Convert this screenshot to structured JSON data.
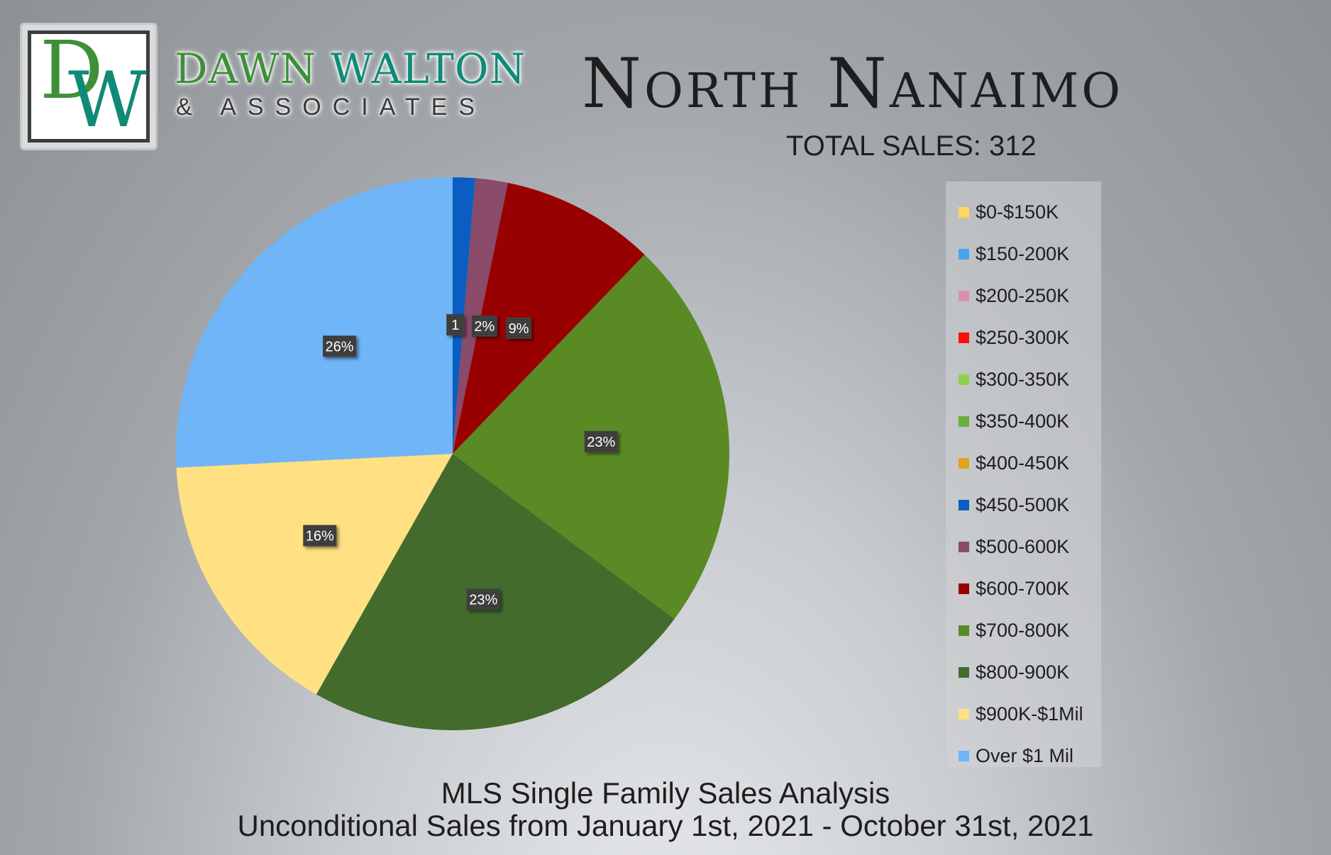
{
  "brand": {
    "logo_letters": "DW",
    "name_first": "DAWN",
    "name_last": "WALTON",
    "tagline": "& ASSOCIATES"
  },
  "header": {
    "title": "North Nanaimo",
    "total_sales": "TOTAL SALES: 312"
  },
  "footer": {
    "line1": "MLS Single Family Sales Analysis",
    "line2": "Unconditional Sales from January 1st, 2021 - October 31st, 2021"
  },
  "chart_data": {
    "type": "pie",
    "title": "North Nanaimo",
    "subtitle": "TOTAL SALES: 312",
    "legend_position": "right",
    "legend": [
      {
        "label": "$0-$150K",
        "color": "#ffd75e"
      },
      {
        "label": "$150-200K",
        "color": "#4aa3f0"
      },
      {
        "label": "$200-250K",
        "color": "#d88fb0"
      },
      {
        "label": "$250-300K",
        "color": "#ff0d0d"
      },
      {
        "label": "$300-350K",
        "color": "#8fd14f"
      },
      {
        "label": "$350-400K",
        "color": "#6aae3e"
      },
      {
        "label": "$400-450K",
        "color": "#e3a31a"
      },
      {
        "label": "$450-500K",
        "color": "#0a5ec2"
      },
      {
        "label": "$500-600K",
        "color": "#8a4a69"
      },
      {
        "label": "$600-700K",
        "color": "#990000"
      },
      {
        "label": "$700-800K",
        "color": "#5a8a24"
      },
      {
        "label": "$800-900K",
        "color": "#436b2b"
      },
      {
        "label": "$900K-$1Mil",
        "color": "#ffe083"
      },
      {
        "label": "Over $1 Mil",
        "color": "#6fb5f7"
      }
    ],
    "slices": [
      {
        "label": "$450-500K",
        "value": 1.3,
        "color": "#0a5ec2",
        "data_label": "1"
      },
      {
        "label": "$500-600K",
        "value": 1.9,
        "color": "#8a4a69",
        "data_label": "2%"
      },
      {
        "label": "$600-700K",
        "value": 9.0,
        "color": "#990000",
        "data_label": "9%"
      },
      {
        "label": "$700-800K",
        "value": 23.0,
        "color": "#5a8a24",
        "data_label": "23%"
      },
      {
        "label": "$800-900K",
        "value": 23.0,
        "color": "#436b2b",
        "data_label": "23%"
      },
      {
        "label": "$900K-$1Mil",
        "value": 16.0,
        "color": "#ffe083",
        "data_label": "16%"
      },
      {
        "label": "Over $1 Mil",
        "value": 25.8,
        "color": "#6fb5f7",
        "data_label": "26%"
      }
    ]
  }
}
